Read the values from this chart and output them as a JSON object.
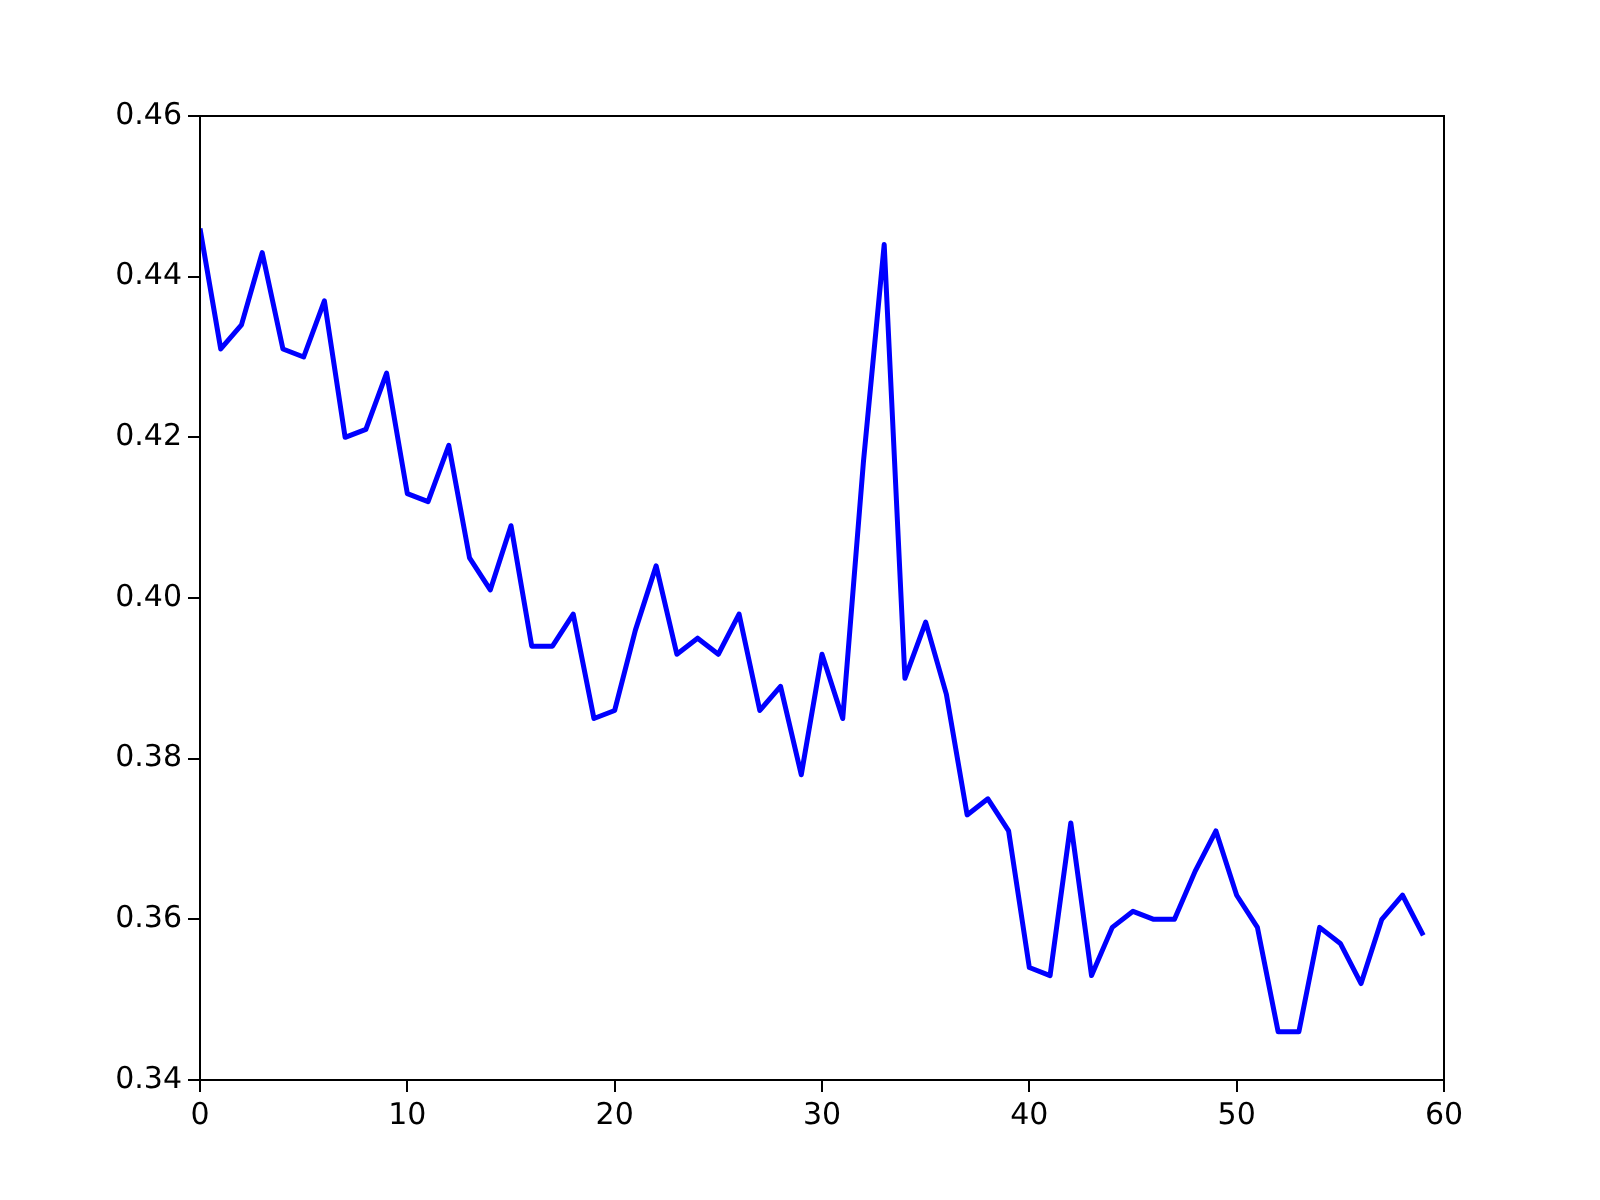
{
  "chart_data": {
    "type": "line",
    "x": [
      0,
      1,
      2,
      3,
      4,
      5,
      6,
      7,
      8,
      9,
      10,
      11,
      12,
      13,
      14,
      15,
      16,
      17,
      18,
      19,
      20,
      21,
      22,
      23,
      24,
      25,
      26,
      27,
      28,
      29,
      30,
      31,
      32,
      33,
      34,
      35,
      36,
      37,
      38,
      39,
      40,
      41,
      42,
      43,
      44,
      45,
      46,
      47,
      48,
      49,
      50,
      51,
      52,
      53,
      54,
      55,
      56,
      57,
      58,
      59
    ],
    "series": [
      {
        "color": "#0000ff",
        "values": [
          0.446,
          0.431,
          0.434,
          0.443,
          0.431,
          0.43,
          0.437,
          0.42,
          0.421,
          0.428,
          0.413,
          0.412,
          0.419,
          0.405,
          0.401,
          0.409,
          0.394,
          0.394,
          0.398,
          0.385,
          0.386,
          0.396,
          0.404,
          0.393,
          0.395,
          0.393,
          0.398,
          0.386,
          0.389,
          0.378,
          0.393,
          0.385,
          0.417,
          0.444,
          0.39,
          0.397,
          0.388,
          0.373,
          0.375,
          0.371,
          0.354,
          0.353,
          0.372,
          0.353,
          0.359,
          0.361,
          0.36,
          0.36,
          0.366,
          0.371,
          0.363,
          0.359,
          0.346,
          0.346,
          0.359,
          0.357,
          0.352,
          0.36,
          0.363,
          0.358
        ]
      }
    ],
    "xlim": [
      0,
      60
    ],
    "xticks": [
      0,
      10,
      20,
      30,
      40,
      50,
      60
    ],
    "ylim": [
      0.34,
      0.46
    ],
    "yticks": [
      {
        "value": 0.34,
        "label": "0.34"
      },
      {
        "value": 0.36,
        "label": "0.36"
      },
      {
        "value": 0.38,
        "label": "0.38"
      },
      {
        "value": 0.4,
        "label": "0.40"
      },
      {
        "value": 0.42,
        "label": "0.42"
      },
      {
        "value": 0.44,
        "label": "0.44"
      },
      {
        "value": 0.46,
        "label": "0.46"
      }
    ],
    "grid": false,
    "legend": false,
    "marker": "none",
    "line_style": "solid"
  }
}
